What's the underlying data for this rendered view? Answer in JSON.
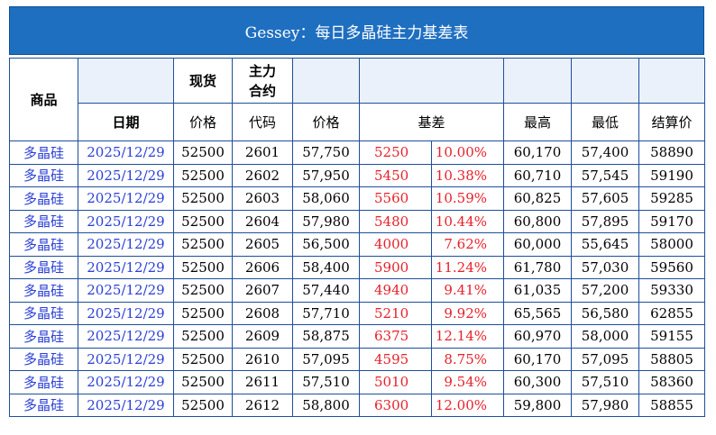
{
  "title": "Gessey：每日多晶硅主力基差表",
  "headers": {
    "product": "商品",
    "spot": "现货",
    "main_contract": "主力\n合约",
    "date": "日期",
    "spot_price": "价格",
    "code": "代码",
    "price": "价格",
    "basis": "基差",
    "high": "最高",
    "low": "最低",
    "settle": "结算价"
  },
  "rows": [
    {
      "product": "多晶硅",
      "date": "2025/12/29",
      "spot": "52500",
      "code": "2601",
      "price": "57,750",
      "basis": "5250",
      "pct": "10.00%",
      "high": "60,170",
      "low": "57,400",
      "settle": "58890"
    },
    {
      "product": "多晶硅",
      "date": "2025/12/29",
      "spot": "52500",
      "code": "2602",
      "price": "57,950",
      "basis": "5450",
      "pct": "10.38%",
      "high": "60,710",
      "low": "57,545",
      "settle": "59190"
    },
    {
      "product": "多晶硅",
      "date": "2025/12/29",
      "spot": "52500",
      "code": "2603",
      "price": "58,060",
      "basis": "5560",
      "pct": "10.59%",
      "high": "60,825",
      "low": "57,605",
      "settle": "59285"
    },
    {
      "product": "多晶硅",
      "date": "2025/12/29",
      "spot": "52500",
      "code": "2604",
      "price": "57,980",
      "basis": "5480",
      "pct": "10.44%",
      "high": "60,800",
      "low": "57,895",
      "settle": "59170"
    },
    {
      "product": "多晶硅",
      "date": "2025/12/29",
      "spot": "52500",
      "code": "2605",
      "price": "56,500",
      "basis": "4000",
      "pct": "7.62%",
      "high": "60,000",
      "low": "55,645",
      "settle": "58000"
    },
    {
      "product": "多晶硅",
      "date": "2025/12/29",
      "spot": "52500",
      "code": "2606",
      "price": "58,400",
      "basis": "5900",
      "pct": "11.24%",
      "high": "61,780",
      "low": "57,030",
      "settle": "59560"
    },
    {
      "product": "多晶硅",
      "date": "2025/12/29",
      "spot": "52500",
      "code": "2607",
      "price": "57,440",
      "basis": "4940",
      "pct": "9.41%",
      "high": "61,035",
      "low": "57,200",
      "settle": "59330"
    },
    {
      "product": "多晶硅",
      "date": "2025/12/29",
      "spot": "52500",
      "code": "2608",
      "price": "57,710",
      "basis": "5210",
      "pct": "9.92%",
      "high": "65,565",
      "low": "56,580",
      "settle": "62855"
    },
    {
      "product": "多晶硅",
      "date": "2025/12/29",
      "spot": "52500",
      "code": "2609",
      "price": "58,875",
      "basis": "6375",
      "pct": "12.14%",
      "high": "60,970",
      "low": "58,000",
      "settle": "59155"
    },
    {
      "product": "多晶硅",
      "date": "2025/12/29",
      "spot": "52500",
      "code": "2610",
      "price": "57,095",
      "basis": "4595",
      "pct": "8.75%",
      "high": "60,170",
      "low": "57,095",
      "settle": "58805"
    },
    {
      "product": "多晶硅",
      "date": "2025/12/29",
      "spot": "52500",
      "code": "2611",
      "price": "57,510",
      "basis": "5010",
      "pct": "9.54%",
      "high": "60,300",
      "low": "57,510",
      "settle": "58360"
    },
    {
      "product": "多晶硅",
      "date": "2025/12/29",
      "spot": "52500",
      "code": "2612",
      "price": "58,800",
      "basis": "6300",
      "pct": "12.00%",
      "high": "59,800",
      "low": "57,980",
      "settle": "58855"
    }
  ],
  "colors": {
    "title_bg": "#1f6fc0",
    "border": "#1f4e9c",
    "link_blue": "#2a3fd6",
    "basis_red": "#e8202a",
    "header_blank": "#eaf1fb"
  }
}
